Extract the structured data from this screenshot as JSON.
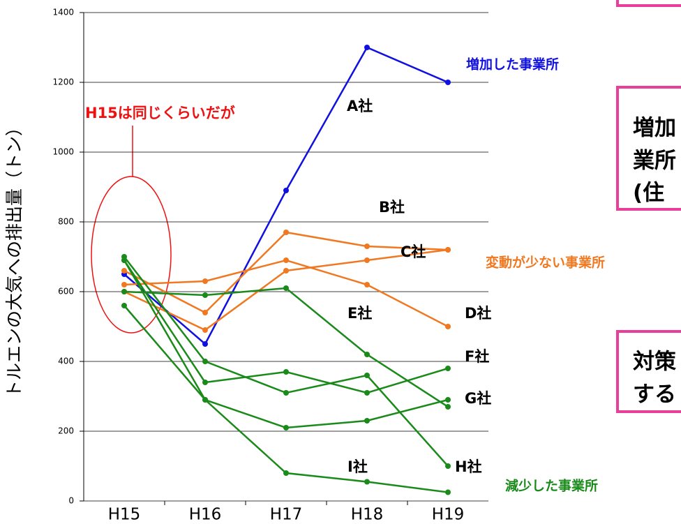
{
  "chart_data": {
    "type": "line",
    "y_label": "トルエンの大気への排出量（トン）",
    "categories": [
      "H15",
      "H16",
      "H17",
      "H18",
      "H19"
    ],
    "ylim": [
      0,
      1400
    ],
    "yticks": [
      0,
      200,
      400,
      600,
      800,
      1000,
      1200,
      1400
    ],
    "grid": true,
    "series": [
      {
        "color": "#1010e0",
        "values": [
          650,
          450,
          890,
          1300,
          1200
        ]
      },
      {
        "color": "#f07820",
        "values": [
          620,
          630,
          690,
          620,
          500
        ]
      },
      {
        "color": "#f07820",
        "values": [
          660,
          540,
          770,
          730,
          720
        ]
      },
      {
        "color": "#f07820",
        "values": [
          600,
          490,
          660,
          690,
          720
        ]
      },
      {
        "color": "#1a8a1a",
        "values": [
          600,
          590,
          610,
          420,
          270
        ]
      },
      {
        "color": "#1a8a1a",
        "values": [
          700,
          400,
          310,
          360,
          100
        ]
      },
      {
        "color": "#1a8a1a",
        "values": [
          690,
          340,
          370,
          310,
          380
        ]
      },
      {
        "color": "#1a8a1a",
        "values": [
          560,
          290,
          210,
          230,
          290
        ]
      },
      {
        "color": "#1a8a1a",
        "values": [
          690,
          290,
          80,
          55,
          25
        ]
      }
    ],
    "annotations": [
      {
        "text": "増加した事業所",
        "color": "#1010e0"
      },
      {
        "text": "A社",
        "color": "#000000"
      },
      {
        "text": "B社",
        "color": "#000000"
      },
      {
        "text": "C社",
        "color": "#000000"
      },
      {
        "text": "D社",
        "color": "#000000"
      },
      {
        "text": "E社",
        "color": "#000000"
      },
      {
        "text": "F社",
        "color": "#000000"
      },
      {
        "text": "G社",
        "color": "#000000"
      },
      {
        "text": "H社",
        "color": "#000000"
      },
      {
        "text": "I社",
        "color": "#000000"
      },
      {
        "text": "変動が少ない事業所",
        "color": "#f07820"
      },
      {
        "text": "減少した事業所",
        "color": "#1a8a1a"
      },
      {
        "text": "H15は同じくらいだが",
        "color": "#ee1111"
      }
    ],
    "boxes": [
      [
        "増加",
        "業所",
        "(住"
      ],
      [
        "対策",
        "する"
      ]
    ]
  }
}
